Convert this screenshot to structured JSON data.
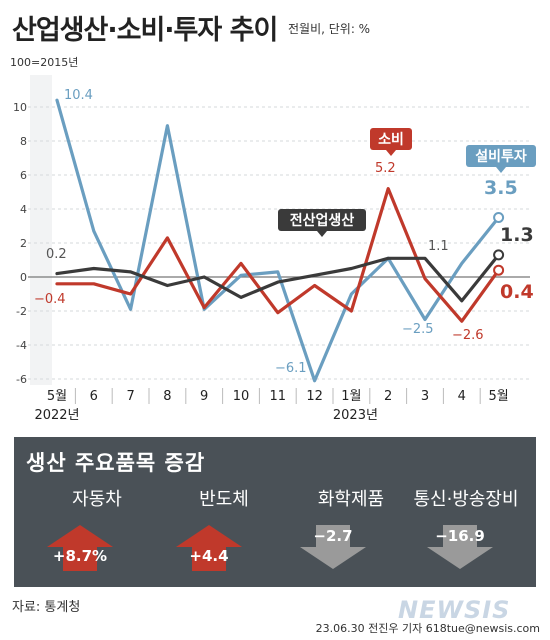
{
  "header": {
    "title": "산업생산·소비·투자 추이",
    "subtitle": "전월비, 단위: %",
    "base": "100=2015년"
  },
  "chart_data": {
    "type": "line",
    "categories": [
      "5월",
      "6",
      "7",
      "8",
      "9",
      "10",
      "11",
      "12",
      "1월",
      "2",
      "3",
      "4",
      "5월"
    ],
    "year_labels": [
      "2022년",
      "2023년"
    ],
    "ylim": [
      -6,
      10
    ],
    "yticks": [
      10,
      8,
      6,
      4,
      2,
      0,
      -2,
      -4,
      -6
    ],
    "series": [
      {
        "name": "전산업생산",
        "color": "#3a3a3a",
        "values": [
          0.2,
          0.5,
          0.3,
          -0.5,
          0.0,
          -1.2,
          -0.3,
          0.1,
          0.5,
          1.1,
          1.1,
          -1.4,
          1.3
        ]
      },
      {
        "name": "소비",
        "color": "#c0392b",
        "values": [
          -0.4,
          -0.4,
          -1.0,
          2.3,
          -1.8,
          0.8,
          -2.1,
          -0.5,
          -2.0,
          5.2,
          -0.1,
          -2.6,
          0.4
        ]
      },
      {
        "name": "설비투자",
        "color": "#6a9ec0",
        "values": [
          10.4,
          2.7,
          -1.9,
          8.9,
          -1.9,
          0.1,
          0.3,
          -6.1,
          -1.0,
          1.1,
          -2.5,
          0.8,
          3.5
        ]
      }
    ],
    "annotations": {
      "industry_start": "0.2",
      "industry_mar": "1.1",
      "industry_end": "1.3",
      "consumption_start": "−0.4",
      "consumption_feb": "5.2",
      "consumption_apr": "−2.6",
      "consumption_end": "0.4",
      "investment_start": "10.4",
      "investment_dec": "−6.1",
      "investment_mar": "−2.5",
      "investment_end": "3.5"
    }
  },
  "panel": {
    "title": "생산 주요품목 증감",
    "items": [
      {
        "label": "자동차",
        "value": "+8.7%",
        "direction": "up",
        "color": "#c0392b"
      },
      {
        "label": "반도체",
        "value": "+4.4",
        "direction": "up",
        "color": "#c0392b"
      },
      {
        "label": "화학제품",
        "value": "−2.7",
        "direction": "down",
        "color": "#9a9a9a"
      },
      {
        "label": "통신·방송장비",
        "value": "−16.9",
        "direction": "down",
        "color": "#9a9a9a"
      }
    ]
  },
  "footer": {
    "source": "자료: 통계청",
    "credit": "23.06.30 전진우 기자 618tue@newsis.com",
    "logo": "NEWSIS"
  }
}
